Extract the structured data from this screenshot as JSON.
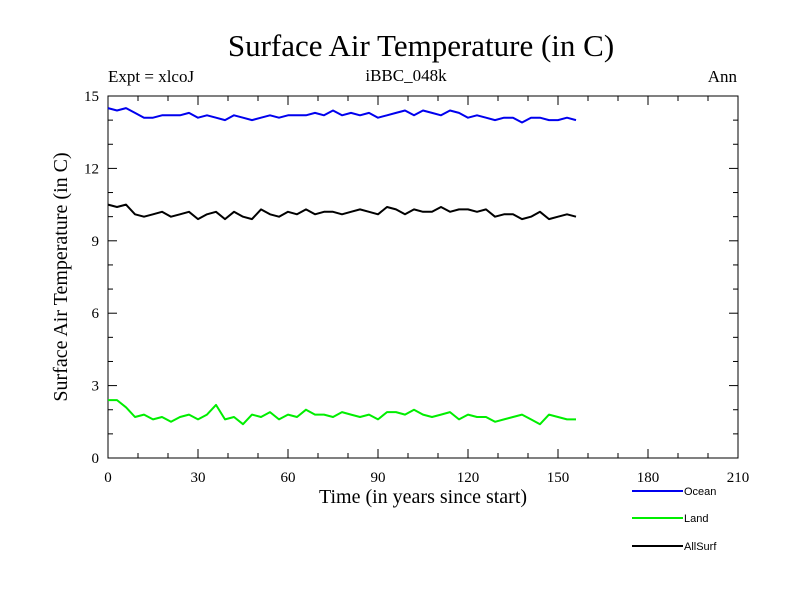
{
  "chart_data": {
    "type": "line",
    "title": "Surface Air Temperature (in C)",
    "subtitle": "iBBC_048k",
    "annotations": {
      "left": "Expt = xlcoJ",
      "right": "Ann"
    },
    "xlabel": "Time (in years since start)",
    "ylabel": "Surface Air Temperature (in C)",
    "xlim": [
      0,
      210
    ],
    "ylim": [
      0,
      15
    ],
    "xticks": [
      0,
      30,
      60,
      90,
      120,
      150,
      180,
      210
    ],
    "yticks": [
      0,
      3,
      6,
      9,
      12,
      15
    ],
    "legend_position": "bottom-right-outside",
    "series": [
      {
        "name": "Ocean",
        "color": "#0000ee",
        "x_start": 0,
        "x_step": 3,
        "values": [
          14.5,
          14.4,
          14.5,
          14.3,
          14.1,
          14.1,
          14.2,
          14.2,
          14.2,
          14.3,
          14.1,
          14.2,
          14.1,
          14.0,
          14.2,
          14.1,
          14.0,
          14.1,
          14.2,
          14.1,
          14.2,
          14.2,
          14.2,
          14.3,
          14.2,
          14.4,
          14.2,
          14.3,
          14.2,
          14.3,
          14.1,
          14.2,
          14.3,
          14.4,
          14.2,
          14.4,
          14.3,
          14.2,
          14.4,
          14.3,
          14.1,
          14.2,
          14.1,
          14.0,
          14.1,
          14.1,
          13.9,
          14.1,
          14.1,
          14.0,
          14.0,
          14.1,
          14.0
        ]
      },
      {
        "name": "Land",
        "color": "#00ee00",
        "x_start": 0,
        "x_step": 3,
        "values": [
          2.4,
          2.4,
          2.1,
          1.7,
          1.8,
          1.6,
          1.7,
          1.5,
          1.7,
          1.8,
          1.6,
          1.8,
          2.2,
          1.6,
          1.7,
          1.4,
          1.8,
          1.7,
          1.9,
          1.6,
          1.8,
          1.7,
          2.0,
          1.8,
          1.8,
          1.7,
          1.9,
          1.8,
          1.7,
          1.8,
          1.6,
          1.9,
          1.9,
          1.8,
          2.0,
          1.8,
          1.7,
          1.8,
          1.9,
          1.6,
          1.8,
          1.7,
          1.7,
          1.5,
          1.6,
          1.7,
          1.8,
          1.6,
          1.4,
          1.8,
          1.7,
          1.6,
          1.6
        ]
      },
      {
        "name": "AllSurf",
        "color": "#000000",
        "x_start": 0,
        "x_step": 3,
        "values": [
          10.5,
          10.4,
          10.5,
          10.1,
          10.0,
          10.1,
          10.2,
          10.0,
          10.1,
          10.2,
          9.9,
          10.1,
          10.2,
          9.9,
          10.2,
          10.0,
          9.9,
          10.3,
          10.1,
          10.0,
          10.2,
          10.1,
          10.3,
          10.1,
          10.2,
          10.2,
          10.1,
          10.2,
          10.3,
          10.2,
          10.1,
          10.4,
          10.3,
          10.1,
          10.3,
          10.2,
          10.2,
          10.4,
          10.2,
          10.3,
          10.3,
          10.2,
          10.3,
          10.0,
          10.1,
          10.1,
          9.9,
          10.0,
          10.2,
          9.9,
          10.0,
          10.1,
          10.0
        ]
      }
    ]
  }
}
